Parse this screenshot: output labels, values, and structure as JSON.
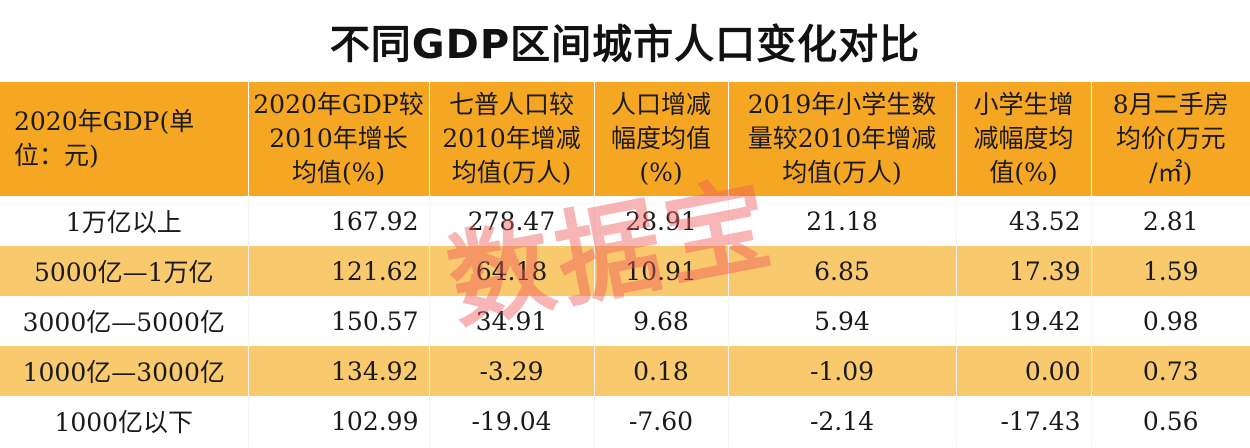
{
  "title": "不同GDP区间城市人口变化对比",
  "watermark": "数据宝",
  "table": {
    "headers": [
      [
        "2020年GDP(单",
        "位：元)"
      ],
      [
        "2020年GDP较",
        "2010年增长",
        "均值(%)"
      ],
      [
        "七普人口较",
        "2010年增减",
        "均值(万人)"
      ],
      [
        "人口增减",
        "幅度均值",
        "(%)"
      ],
      [
        "2019年小学生数",
        "量较2010年增减",
        "均值(万人)"
      ],
      [
        "小学生增",
        "减幅度均",
        "值(%)"
      ],
      [
        "8月二手房",
        "均价(万元",
        "/㎡)"
      ]
    ],
    "rows": [
      [
        "1万亿以上",
        "167.92",
        "278.47",
        "28.91",
        "21.18",
        "43.52",
        "2.81"
      ],
      [
        "5000亿—1万亿",
        "121.62",
        "64.18",
        "10.91",
        "6.85",
        "17.39",
        "1.59"
      ],
      [
        "3000亿—5000亿",
        "150.57",
        "34.91",
        "9.68",
        "5.94",
        "19.42",
        "0.98"
      ],
      [
        "1000亿—3000亿",
        "134.92",
        "-3.29",
        "0.18",
        "-1.09",
        "0.00",
        "0.73"
      ],
      [
        "1000亿以下",
        "102.99",
        "-19.04",
        "-7.60",
        "-2.14",
        "-17.43",
        "0.56"
      ]
    ]
  }
}
